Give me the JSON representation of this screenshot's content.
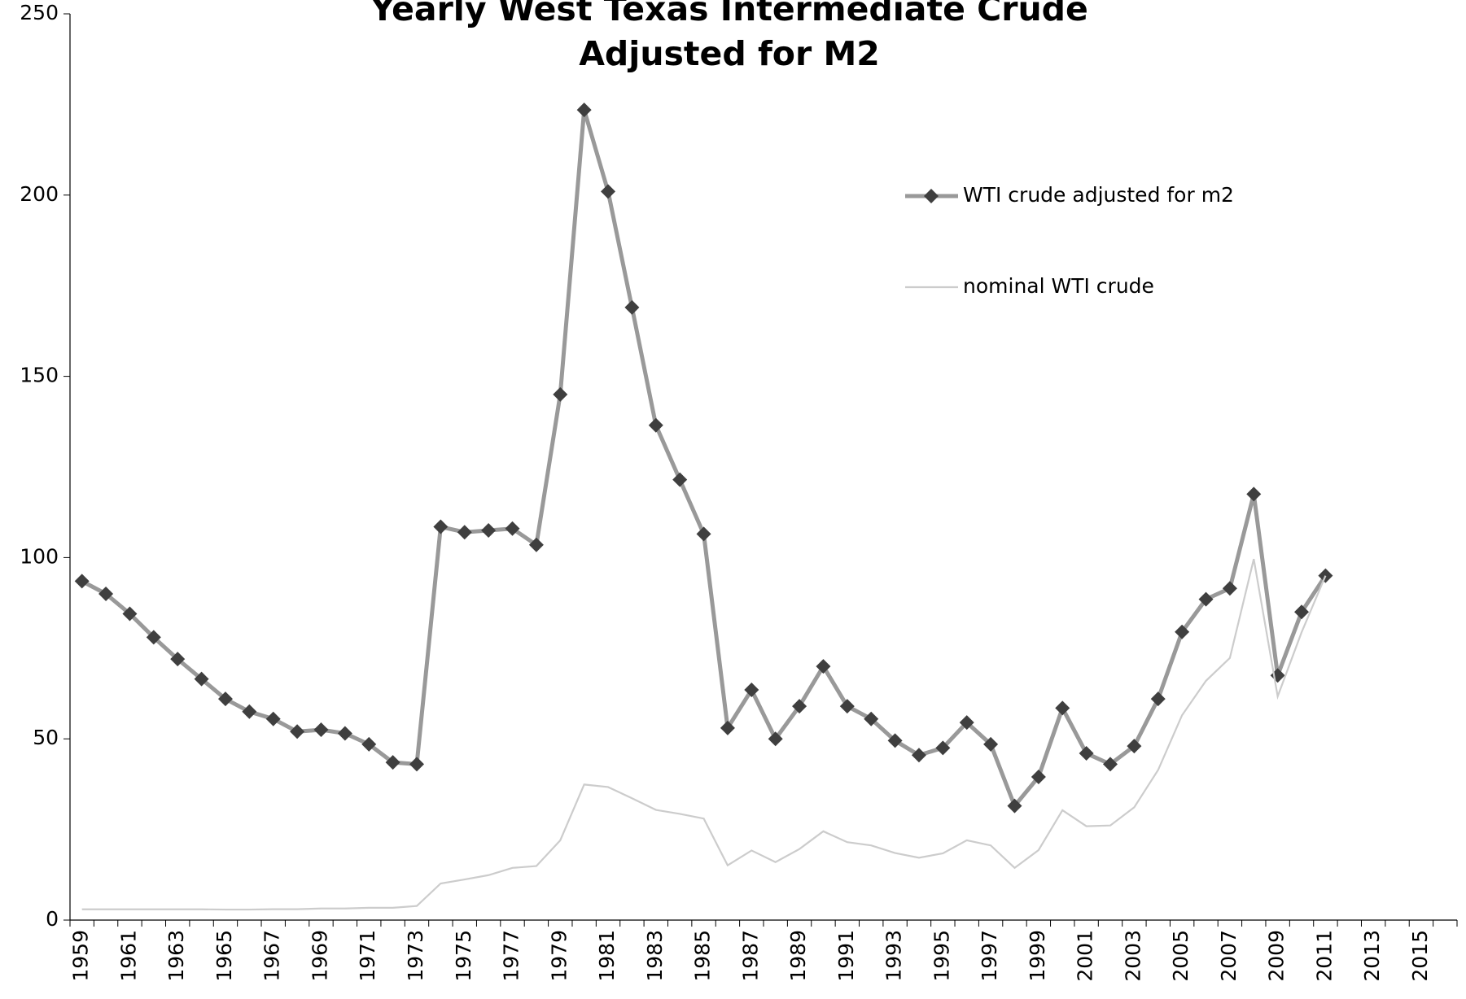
{
  "chart_data": {
    "type": "line",
    "title": [
      "Yearly West Texas Intermediate Crude",
      "Adjusted for M2"
    ],
    "categories": [
      "1959",
      null,
      "1961",
      null,
      "1963",
      null,
      "1965",
      null,
      "1967",
      null,
      "1969",
      null,
      "1971",
      null,
      "1973",
      null,
      "1975",
      null,
      "1977",
      null,
      "1979",
      null,
      "1981",
      null,
      "1983",
      null,
      "1985",
      null,
      "1987",
      null,
      "1989",
      null,
      "1991",
      null,
      "1993",
      null,
      "1995",
      null,
      "1997",
      null,
      "1999",
      null,
      "2001",
      null,
      "2003",
      null,
      "2005",
      null,
      "2007",
      null,
      "2009",
      null,
      "2011",
      null,
      "2013",
      null,
      "2015",
      null
    ],
    "series": [
      {
        "name": "WTI crude adjusted for m2",
        "color": "#999999",
        "marker_color": "#3f3f3f",
        "marker": "diamond",
        "values": [
          93.5,
          90,
          84.5,
          78,
          72,
          66.5,
          61,
          57.5,
          55.5,
          52,
          52.5,
          51.5,
          48.5,
          43.5,
          43,
          108.5,
          107,
          107.5,
          108,
          103.5,
          145,
          223.5,
          201,
          169,
          136.5,
          121.5,
          106.5,
          53,
          63.5,
          50,
          59,
          70,
          59,
          55.5,
          49.5,
          45.5,
          47.5,
          54.5,
          48.5,
          31.5,
          39.5,
          58.5,
          46,
          43,
          48,
          61,
          79.5,
          88.5,
          91.5,
          117.5,
          67.5,
          85,
          95,
          null,
          null,
          null,
          null,
          null
        ]
      },
      {
        "name": "nominal WTI crude",
        "color": "#cccccc",
        "values": [
          2.97,
          2.97,
          2.97,
          2.97,
          2.97,
          2.97,
          2.9,
          2.9,
          3.0,
          3.0,
          3.2,
          3.2,
          3.4,
          3.4,
          3.9,
          10.1,
          11.2,
          12.4,
          14.4,
          14.9,
          22,
          37.4,
          36.7,
          33.6,
          30.4,
          29.3,
          28.0,
          15.1,
          19.2,
          16,
          19.6,
          24.5,
          21.5,
          20.6,
          18.5,
          17.2,
          18.4,
          22,
          20.6,
          14.4,
          19.3,
          30.3,
          25.9,
          26.1,
          31.1,
          41.4,
          56.5,
          66,
          72.3,
          99.6,
          61.7,
          79.4,
          95,
          null,
          null,
          null,
          null,
          null
        ]
      }
    ],
    "ylim": [
      0,
      250
    ],
    "yticks": [
      0,
      50,
      100,
      150,
      200,
      250
    ],
    "grid": false,
    "legend": "upper right"
  }
}
